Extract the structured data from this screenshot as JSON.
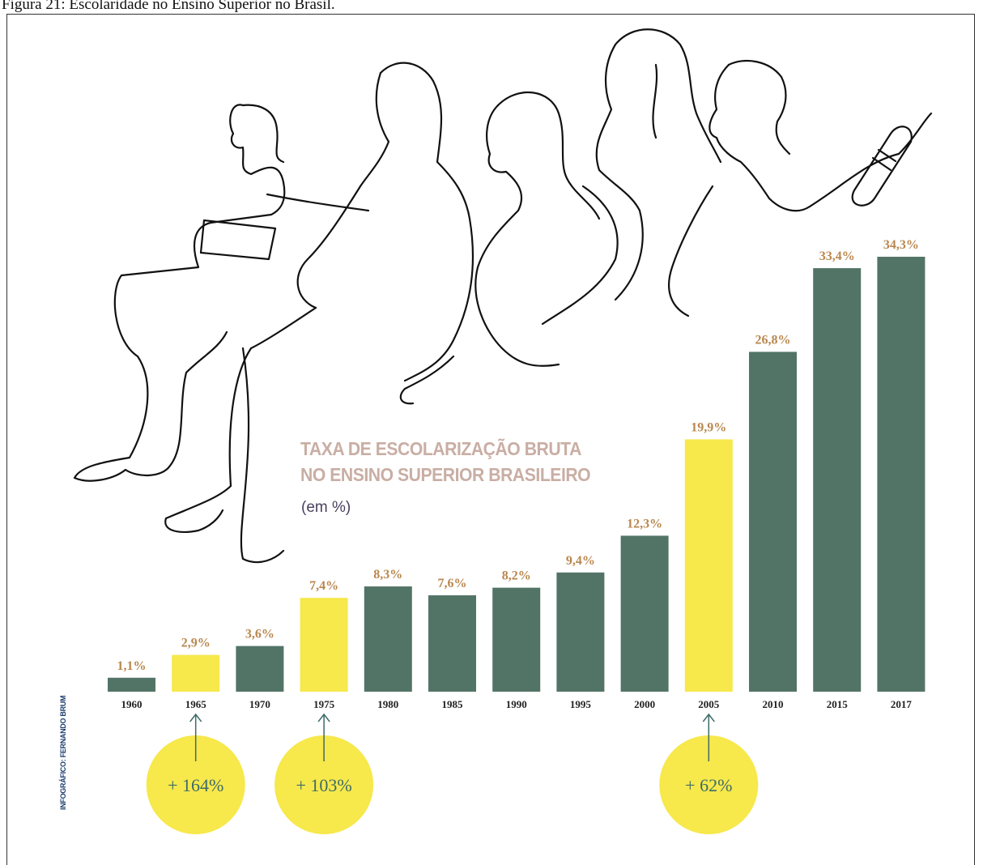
{
  "figure_caption": "Figura 21: Escolaridade no Ensino Superior no Brasil.",
  "chart_title_line1": "TAXA DE ESCOLARIZAÇÃO BRUTA",
  "chart_title_line2": "NO ENSINO SUPERIOR BRASILEIRO",
  "chart_unit": "(em %)",
  "credit": "INFOGRÁFICO: FERNANDO BRUM",
  "colors": {
    "bar": "#527466",
    "highlight": "#f7e84b",
    "value_label": "#b9874f",
    "year_label": "#222222",
    "growth_text": "#3d6b68",
    "arrow": "#3d6b68"
  },
  "chart_data": {
    "type": "bar",
    "title": "TAXA DE ESCOLARIZAÇÃO BRUTA NO ENSINO SUPERIOR BRASILEIRO",
    "ylabel": "(em %)",
    "xlabel": "",
    "categories": [
      "1960",
      "1965",
      "1970",
      "1975",
      "1980",
      "1985",
      "1990",
      "1995",
      "2000",
      "2005",
      "2010",
      "2015",
      "2017"
    ],
    "values": [
      1.1,
      2.9,
      3.6,
      7.4,
      8.3,
      7.6,
      8.2,
      9.4,
      12.3,
      19.9,
      26.8,
      33.4,
      34.3
    ],
    "value_labels": [
      "1,1%",
      "2,9%",
      "3,6%",
      "7,4%",
      "8,3%",
      "7,6%",
      "8,2%",
      "9,4%",
      "12,3%",
      "19,9%",
      "26,8%",
      "33,4%",
      "34,3%"
    ],
    "highlighted": [
      false,
      true,
      false,
      true,
      false,
      false,
      false,
      false,
      false,
      true,
      false,
      false,
      false
    ],
    "growth_annotations": [
      {
        "category": "1965",
        "label": "+ 164%"
      },
      {
        "category": "1975",
        "label": "+ 103%"
      },
      {
        "category": "2005",
        "label": "+ 62%"
      }
    ],
    "ylim": [
      0,
      34.3
    ],
    "grid": false,
    "legend": "none"
  }
}
